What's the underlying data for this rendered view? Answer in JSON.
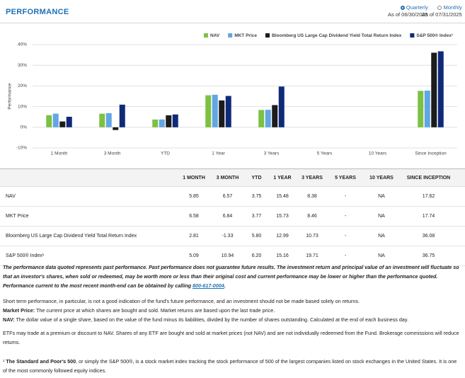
{
  "header": {
    "title": "PERFORMANCE",
    "frequency_options": [
      {
        "label": "Quarterly",
        "as_of": "As of 06/30/2025",
        "selected": true
      },
      {
        "label": "Monthly",
        "as_of": "As of 07/31/2025",
        "selected": false
      }
    ]
  },
  "chart_data": {
    "type": "bar",
    "y_label": "Performance",
    "categories": [
      "1 Month",
      "3 Month",
      "YTD",
      "1 Year",
      "3 Years",
      "5 Years",
      "10 Years",
      "Since Inception"
    ],
    "series": [
      {
        "name": "NAV",
        "color": "#7cc142",
        "values": [
          5.85,
          6.57,
          3.75,
          15.48,
          8.38,
          null,
          null,
          17.62
        ]
      },
      {
        "name": "MKT Price",
        "color": "#62a6e3",
        "values": [
          6.58,
          6.84,
          3.77,
          15.73,
          8.46,
          null,
          null,
          17.74
        ]
      },
      {
        "name": "Bloomberg US Large Cap Dividend Yield Total Return Index",
        "color": "#1c1c1c",
        "values": [
          2.81,
          -1.33,
          5.8,
          12.99,
          10.73,
          null,
          null,
          36.08
        ]
      },
      {
        "name": "S&P 500® Index¹",
        "color": "#0f2a78",
        "values": [
          5.09,
          10.94,
          6.2,
          15.16,
          19.71,
          null,
          null,
          36.75
        ]
      }
    ],
    "ylim": [
      -10,
      40
    ],
    "yticks": [
      {
        "value": -10,
        "label": "-10%"
      },
      {
        "value": 0,
        "label": "0%"
      },
      {
        "value": 10,
        "label": "10%"
      },
      {
        "value": 20,
        "label": "20%"
      },
      {
        "value": 30,
        "label": "30%"
      },
      {
        "value": 40,
        "label": "40%"
      }
    ],
    "grid": true,
    "legend": "top-right"
  },
  "table": {
    "columns": [
      "1 MONTH",
      "3 MONTH",
      "YTD",
      "1 YEAR",
      "3 YEARS",
      "5 YEARS",
      "10 YEARS",
      "SINCE INCEPTION"
    ],
    "rows": [
      {
        "label": "NAV",
        "cells": [
          "5.85",
          "6.57",
          "3.75",
          "15.48",
          "8.38",
          "-",
          "NA",
          "17.62"
        ]
      },
      {
        "label": "MKT Price",
        "cells": [
          "6.58",
          "6.84",
          "3.77",
          "15.73",
          "8.46",
          "-",
          "NA",
          "17.74"
        ]
      },
      {
        "label": "Bloomberg US Large Cap Dividend Yield Total Return Index",
        "cells": [
          "2.81",
          "-1.33",
          "5.80",
          "12.99",
          "10.73",
          "-",
          "NA",
          "36.08"
        ]
      },
      {
        "label": "S&P 500® Index¹",
        "cells": [
          "5.09",
          "10.94",
          "6.20",
          "15.16",
          "19.71",
          "-",
          "NA",
          "36.75"
        ]
      }
    ]
  },
  "disclosures": {
    "notice": {
      "text": "The performance data quoted represents past performance. Past performance does not guarantee future results. The investment return and principal value of an investment will fluctuate so that an investor's shares, when sold or redeemed, may be worth more or less than their original cost and current performance may be lower or higher than the performance quoted. Performance current to the most recent month-end can be obtained by calling ",
      "phone": "800-617-0004",
      "end": "."
    },
    "short_term": "Short term performance, in particular, is not a good indication of the fund's future performance, and an investment should not be made based solely on returns.",
    "market_price": {
      "term": "Market Price:",
      "text": " The current price at which shares are bought and sold. Market returns are based upon the last trade price."
    },
    "nav": {
      "term": "NAV:",
      "text": " The dollar value of a single share, based on the value of the fund minus its liabilities, divided by the number of shares outstanding. Calculated at the end of each business day."
    },
    "etf": "ETFs may trade at a premium or discount to NAV. Shares of any ETF are bought and sold at market prices (not NAV) and are not individually redeemed from the Fund. Brokerage commissions will reduce returns.",
    "footnote": {
      "mark": "¹ ",
      "term": "The Standard and Poor's 500",
      "text": ", or simply the S&P 500®, is a stock market index tracking the stock performance of 500 of the largest companies listed on stock exchanges in the United States. It is one of the most commonly followed equity indices."
    }
  }
}
